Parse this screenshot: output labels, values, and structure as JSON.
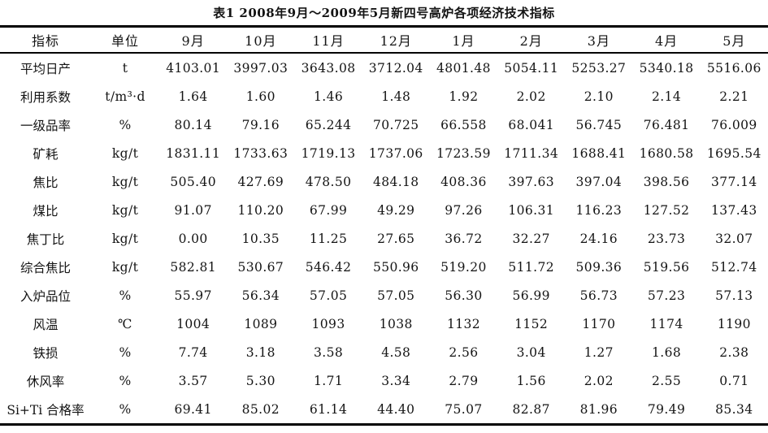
{
  "page": {
    "background_color": "#ffffff",
    "text_color": "#141414",
    "rule_color": "#000000"
  },
  "table": {
    "title": "表1 2008年9月～2009年5月新四号高炉各项经济技术指标",
    "columns": [
      "指标",
      "单位",
      "9月",
      "10月",
      "11月",
      "12月",
      "1月",
      "2月",
      "3月",
      "4月",
      "5月"
    ],
    "rows": [
      {
        "label": "平均日产",
        "unit": "t",
        "values": [
          "4103.01",
          "3997.03",
          "3643.08",
          "3712.04",
          "4801.48",
          "5054.11",
          "5253.27",
          "5340.18",
          "5516.06"
        ]
      },
      {
        "label": "利用系数",
        "unit": "t/m³·d",
        "values": [
          "1.64",
          "1.60",
          "1.46",
          "1.48",
          "1.92",
          "2.02",
          "2.10",
          "2.14",
          "2.21"
        ]
      },
      {
        "label": "一级品率",
        "unit": "%",
        "values": [
          "80.14",
          "79.16",
          "65.244",
          "70.725",
          "66.558",
          "68.041",
          "56.745",
          "76.481",
          "76.009"
        ]
      },
      {
        "label": "矿耗",
        "unit": "kg/t",
        "values": [
          "1831.11",
          "1733.63",
          "1719.13",
          "1737.06",
          "1723.59",
          "1711.34",
          "1688.41",
          "1680.58",
          "1695.54"
        ]
      },
      {
        "label": "焦比",
        "unit": "kg/t",
        "values": [
          "505.40",
          "427.69",
          "478.50",
          "484.18",
          "408.36",
          "397.63",
          "397.04",
          "398.56",
          "377.14"
        ]
      },
      {
        "label": "煤比",
        "unit": "kg/t",
        "values": [
          "91.07",
          "110.20",
          "67.99",
          "49.29",
          "97.26",
          "106.31",
          "116.23",
          "127.52",
          "137.43"
        ]
      },
      {
        "label": "焦丁比",
        "unit": "kg/t",
        "values": [
          "0.00",
          "10.35",
          "11.25",
          "27.65",
          "36.72",
          "32.27",
          "24.16",
          "23.73",
          "32.07"
        ]
      },
      {
        "label": "综合焦比",
        "unit": "kg/t",
        "values": [
          "582.81",
          "530.67",
          "546.42",
          "550.96",
          "519.20",
          "511.72",
          "509.36",
          "519.56",
          "512.74"
        ]
      },
      {
        "label": "入炉品位",
        "unit": "%",
        "values": [
          "55.97",
          "56.34",
          "57.05",
          "57.05",
          "56.30",
          "56.99",
          "56.73",
          "57.23",
          "57.13"
        ]
      },
      {
        "label": "风温",
        "unit": "℃",
        "values": [
          "1004",
          "1089",
          "1093",
          "1038",
          "1132",
          "1152",
          "1170",
          "1174",
          "1190"
        ]
      },
      {
        "label": "铁损",
        "unit": "%",
        "values": [
          "7.74",
          "3.18",
          "3.58",
          "4.58",
          "2.56",
          "3.04",
          "1.27",
          "1.68",
          "2.38"
        ]
      },
      {
        "label": "休风率",
        "unit": "%",
        "values": [
          "3.57",
          "5.30",
          "1.71",
          "3.34",
          "2.79",
          "1.56",
          "2.02",
          "2.55",
          "0.71"
        ]
      },
      {
        "label": "Si+Ti 合格率",
        "unit": "%",
        "values": [
          "69.41",
          "85.02",
          "61.14",
          "44.40",
          "75.07",
          "82.87",
          "81.96",
          "79.49",
          "85.34"
        ]
      }
    ]
  }
}
